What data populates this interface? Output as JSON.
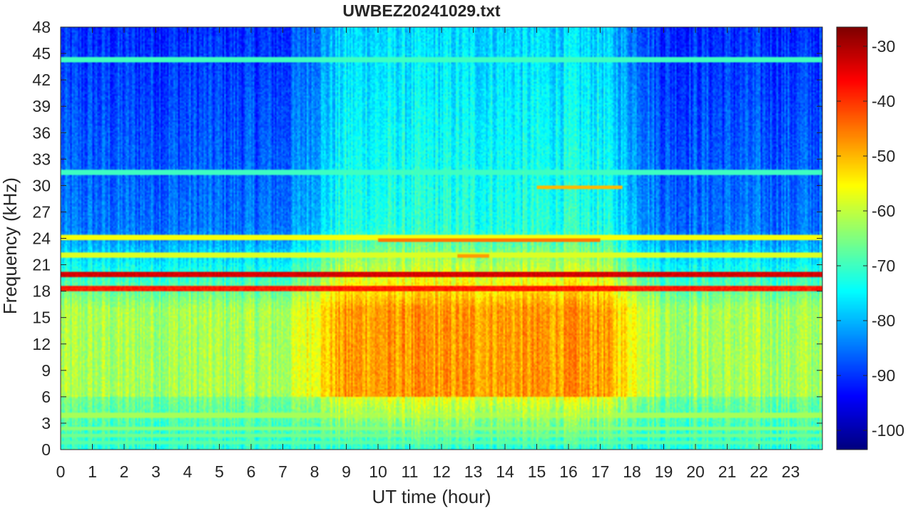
{
  "chart_data": {
    "type": "heatmap",
    "title": "UWBEZ20241029.txt",
    "xlabel": "UT time (hour)",
    "ylabel": "Frequency (kHz)",
    "xlim": [
      0,
      24
    ],
    "ylim": [
      0,
      48
    ],
    "x_ticks": [
      0,
      1,
      2,
      3,
      4,
      5,
      6,
      7,
      8,
      9,
      10,
      11,
      12,
      13,
      14,
      15,
      16,
      17,
      18,
      19,
      20,
      21,
      22,
      23
    ],
    "y_ticks": [
      0,
      3,
      6,
      9,
      12,
      15,
      18,
      21,
      24,
      27,
      30,
      33,
      36,
      39,
      42,
      45,
      48
    ],
    "colorbar": {
      "colormap": "jet",
      "clim": [
        -103.5,
        -26.5
      ],
      "ticks": [
        -30,
        -40,
        -50,
        -60,
        -70,
        -80,
        -90,
        -100
      ]
    },
    "features": {
      "strong_lines_khz": [
        {
          "freq": 19.8,
          "level": -33
        },
        {
          "freq": 18.3,
          "level": -38
        }
      ],
      "weaker_lines_khz": [
        {
          "freq": 44.3,
          "level": -70
        },
        {
          "freq": 31.5,
          "level": -70
        },
        {
          "freq": 24.1,
          "level": -56
        },
        {
          "freq": 22.1,
          "level": -58
        },
        {
          "freq": 3.9,
          "level": -62
        },
        {
          "freq": 2.4,
          "level": -64
        },
        {
          "freq": 1.6,
          "level": -66
        },
        {
          "freq": 0.8,
          "level": -68
        }
      ],
      "transient_lines": [
        {
          "freq": 29.8,
          "start": 15.0,
          "end": 17.7,
          "level": -50
        },
        {
          "freq": 23.9,
          "start": 10.0,
          "end": 17.0,
          "level": -45
        },
        {
          "freq": 22.0,
          "start": 12.5,
          "end": 13.5,
          "level": -48
        }
      ],
      "background": {
        "high_band_khz": [
          25,
          48
        ],
        "high_band_level_night": -85,
        "high_band_level_day": -72,
        "mid_band_khz": [
          6,
          16
        ],
        "mid_band_level_night": -62,
        "mid_band_level_day": -48,
        "low_band_khz": [
          0,
          6
        ],
        "low_band_level": -72,
        "active_hours": [
          8,
          18
        ]
      }
    }
  }
}
